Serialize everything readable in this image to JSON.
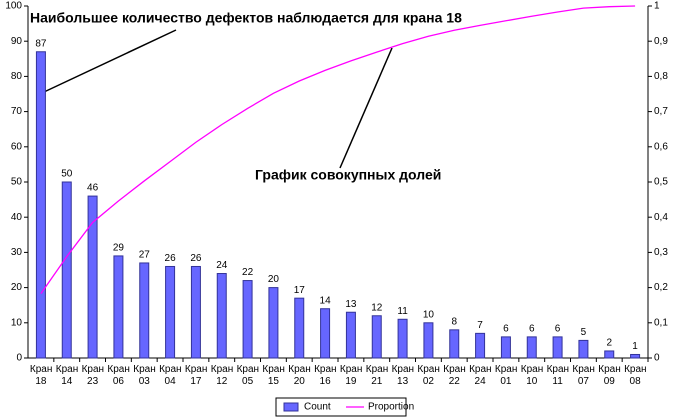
{
  "chart_data": {
    "type": "pareto",
    "annotations": [
      "Наибольшее количество дефектов наблюдается для крана 18",
      "График совокупных долей"
    ],
    "categories": [
      "Кран 18",
      "Кран 14",
      "Кран 23",
      "Кран 06",
      "Кран 03",
      "Кран 04",
      "Кран 17",
      "Кран 12",
      "Кран 05",
      "Кран 15",
      "Кран 20",
      "Кран 16",
      "Кран 19",
      "Кран 21",
      "Кран 13",
      "Кран 02",
      "Кран 22",
      "Кран 24",
      "Кран 01",
      "Кран 10",
      "Кран 11",
      "Кран 07",
      "Кран 09",
      "Кран 08"
    ],
    "series": [
      {
        "name": "Count",
        "color": "#6666ff",
        "values": [
          87,
          50,
          46,
          29,
          27,
          26,
          26,
          24,
          22,
          20,
          17,
          14,
          13,
          12,
          11,
          10,
          8,
          7,
          6,
          6,
          6,
          5,
          2,
          1
        ]
      },
      {
        "name": "Proportion",
        "color": "#ff00ff",
        "axis": "y2",
        "values": [
          0.183,
          0.288,
          0.385,
          0.446,
          0.503,
          0.558,
          0.613,
          0.663,
          0.709,
          0.752,
          0.787,
          0.817,
          0.844,
          0.869,
          0.893,
          0.914,
          0.931,
          0.945,
          0.958,
          0.971,
          0.983,
          0.994,
          0.998,
          1
        ]
      }
    ],
    "ylim": [
      0,
      100
    ],
    "yticks": [
      0,
      10,
      20,
      30,
      40,
      50,
      60,
      70,
      80,
      90,
      100
    ],
    "y2lim": [
      0,
      1
    ],
    "y2ticks": [
      0,
      {
        "value": 0.1,
        "label": "0,1"
      },
      {
        "value": 0.2,
        "label": "0,2"
      },
      {
        "value": 0.3,
        "label": "0,3"
      },
      {
        "value": 0.4,
        "label": "0,4"
      },
      {
        "value": 0.5,
        "label": "0,5"
      },
      {
        "value": 0.6,
        "label": "0,6"
      },
      {
        "value": 0.7,
        "label": "0,7"
      },
      {
        "value": 0.8,
        "label": "0,8"
      },
      {
        "value": 0.9,
        "label": "0,9"
      },
      1
    ],
    "legend": "bottom"
  }
}
